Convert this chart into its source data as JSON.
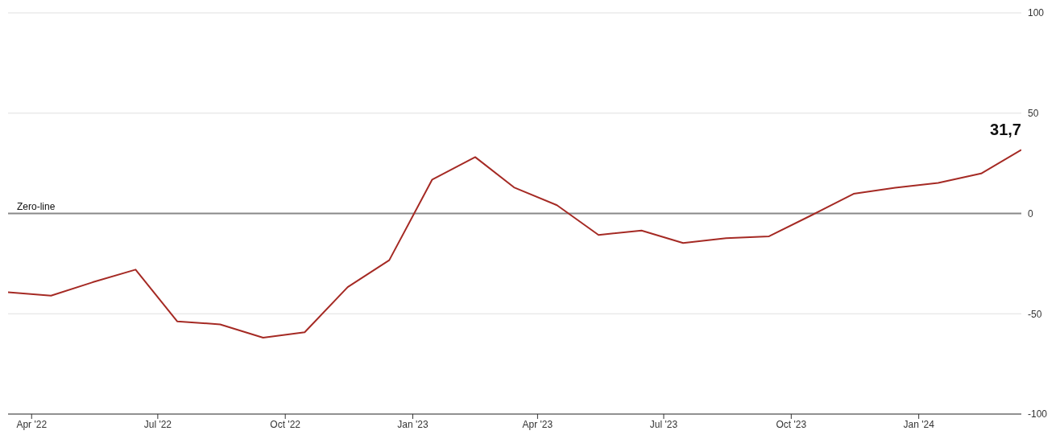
{
  "chart_data": {
    "type": "line",
    "x": [
      "2022-03-15",
      "2022-04-15",
      "2022-05-15",
      "2022-06-15",
      "2022-07-15",
      "2022-08-15",
      "2022-09-15",
      "2022-10-15",
      "2022-11-15",
      "2022-12-15",
      "2023-01-15",
      "2023-02-15",
      "2023-03-15",
      "2023-04-15",
      "2023-05-15",
      "2023-06-15",
      "2023-07-15",
      "2023-08-15",
      "2023-09-15",
      "2023-10-15",
      "2023-11-15",
      "2023-12-15",
      "2024-01-15",
      "2024-02-15",
      "2024-03-15"
    ],
    "series": [
      {
        "color": "#a52a24",
        "values": [
          -39.3,
          -41.0,
          -34.3,
          -28.0,
          -53.8,
          -55.3,
          -61.9,
          -59.2,
          -36.7,
          -23.3,
          16.9,
          28.1,
          13.0,
          4.1,
          -10.7,
          -8.5,
          -14.7,
          -12.3,
          -11.4,
          -1.1,
          9.8,
          12.8,
          15.2,
          19.9,
          31.7
        ],
        "value_labels": [
          null,
          null,
          null,
          null,
          null,
          null,
          null,
          null,
          null,
          null,
          null,
          null,
          null,
          null,
          null,
          null,
          null,
          null,
          null,
          null,
          null,
          null,
          null,
          null,
          "31,7"
        ]
      }
    ],
    "xlim": [
      "2022-03-15",
      "2024-03-15"
    ],
    "xticks": [
      {
        "value": "2022-04-01",
        "label": "Apr '22"
      },
      {
        "value": "2022-07-01",
        "label": "Jul '22"
      },
      {
        "value": "2022-10-01",
        "label": "Oct '22"
      },
      {
        "value": "2023-01-01",
        "label": "Jan '23"
      },
      {
        "value": "2023-04-01",
        "label": "Apr '23"
      },
      {
        "value": "2023-07-01",
        "label": "Jul '23"
      },
      {
        "value": "2023-10-01",
        "label": "Oct '23"
      },
      {
        "value": "2024-01-01",
        "label": "Jan '24"
      }
    ],
    "ylim": [
      -100,
      100
    ],
    "yticks": [
      -100,
      -50,
      0,
      50,
      100
    ],
    "ref_lines": [
      {
        "axis": "y",
        "value": 0,
        "label": "Zero-line",
        "color": "#888888"
      }
    ],
    "grid": "y",
    "marker": "none",
    "line_style": "solid"
  }
}
